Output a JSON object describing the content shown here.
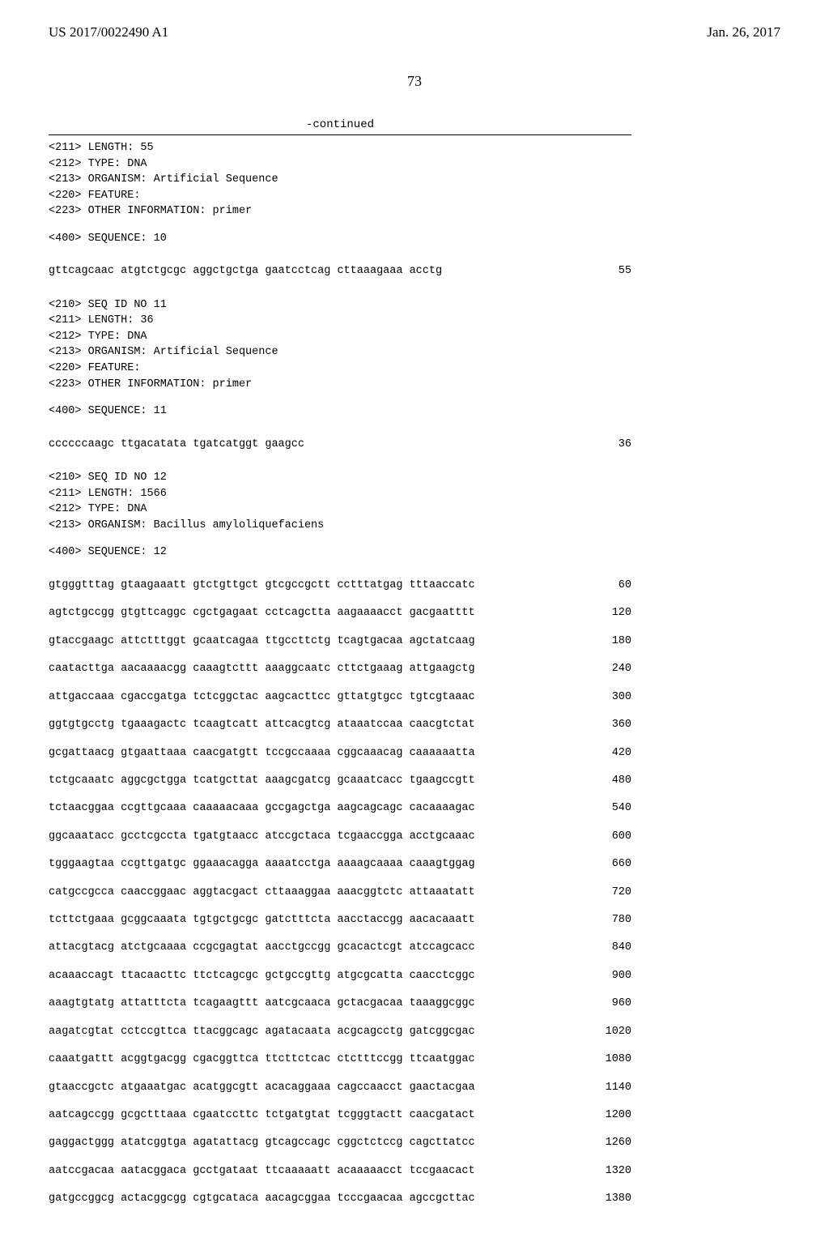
{
  "header": {
    "pub_no": "US 2017/0022490 A1",
    "date": "Jan. 26, 2017"
  },
  "page_number": "73",
  "continued": "-continued",
  "meta_block_1": [
    "<211> LENGTH: 55",
    "<212> TYPE: DNA",
    "<213> ORGANISM: Artificial Sequence",
    "<220> FEATURE:",
    "<223> OTHER INFORMATION: primer"
  ],
  "seq_label_10": "<400> SEQUENCE: 10",
  "row_10": {
    "seq": "gttcagcaac atgtctgcgc aggctgctga gaatcctcag cttaaagaaa acctg",
    "num": "55"
  },
  "meta_block_2": [
    "<210> SEQ ID NO 11",
    "<211> LENGTH: 36",
    "<212> TYPE: DNA",
    "<213> ORGANISM: Artificial Sequence",
    "<220> FEATURE:",
    "<223> OTHER INFORMATION: primer"
  ],
  "seq_label_11": "<400> SEQUENCE: 11",
  "row_11": {
    "seq": "ccccccaagc ttgacatata tgatcatggt gaagcc",
    "num": "36"
  },
  "meta_block_3": [
    "<210> SEQ ID NO 12",
    "<211> LENGTH: 1566",
    "<212> TYPE: DNA",
    "<213> ORGANISM: Bacillus amyloliquefaciens"
  ],
  "seq_label_12": "<400> SEQUENCE: 12",
  "rows_12": [
    {
      "seq": "gtgggtttag gtaagaaatt gtctgttgct gtcgccgctt cctttatgag tttaaccatc",
      "num": "60"
    },
    {
      "seq": "agtctgccgg gtgttcaggc cgctgagaat cctcagctta aagaaaacct gacgaatttt",
      "num": "120"
    },
    {
      "seq": "gtaccgaagc attctttggt gcaatcagaa ttgccttctg tcagtgacaa agctatcaag",
      "num": "180"
    },
    {
      "seq": "caatacttga aacaaaacgg caaagtcttt aaaggcaatc cttctgaaag attgaagctg",
      "num": "240"
    },
    {
      "seq": "attgaccaaa cgaccgatga tctcggctac aagcacttcc gttatgtgcc tgtcgtaaac",
      "num": "300"
    },
    {
      "seq": "ggtgtgcctg tgaaagactc tcaagtcatt attcacgtcg ataaatccaa caacgtctat",
      "num": "360"
    },
    {
      "seq": "gcgattaacg gtgaattaaa caacgatgtt tccgccaaaa cggcaaacag caaaaaatta",
      "num": "420"
    },
    {
      "seq": "tctgcaaatc aggcgctgga tcatgcttat aaagcgatcg gcaaatcacc tgaagccgtt",
      "num": "480"
    },
    {
      "seq": "tctaacggaa ccgttgcaaa caaaaacaaa gccgagctga aagcagcagc cacaaaagac",
      "num": "540"
    },
    {
      "seq": "ggcaaatacc gcctcgccta tgatgtaacc atccgctaca tcgaaccgga acctgcaaac",
      "num": "600"
    },
    {
      "seq": "tgggaagtaa ccgttgatgc ggaaacagga aaaatcctga aaaagcaaaa caaagtggag",
      "num": "660"
    },
    {
      "seq": "catgccgcca caaccggaac aggtacgact cttaaaggaa aaacggtctc attaaatatt",
      "num": "720"
    },
    {
      "seq": "tcttctgaaa gcggcaaata tgtgctgcgc gatctttcta aacctaccgg aacacaaatt",
      "num": "780"
    },
    {
      "seq": "attacgtacg atctgcaaaa ccgcgagtat aacctgccgg gcacactcgt atccagcacc",
      "num": "840"
    },
    {
      "seq": "acaaaccagt ttacaacttc ttctcagcgc gctgccgttg atgcgcatta caacctcggc",
      "num": "900"
    },
    {
      "seq": "aaagtgtatg attatttcta tcagaagttt aatcgcaaca gctacgacaa taaaggcggc",
      "num": "960"
    },
    {
      "seq": "aagatcgtat cctccgttca ttacggcagc agatacaata acgcagcctg gatcggcgac",
      "num": "1020"
    },
    {
      "seq": "caaatgattt acggtgacgg cgacggttca ttcttctcac ctctttccgg ttcaatggac",
      "num": "1080"
    },
    {
      "seq": "gtaaccgctc atgaaatgac acatggcgtt acacaggaaa cagccaacct gaactacgaa",
      "num": "1140"
    },
    {
      "seq": "aatcagccgg gcgctttaaa cgaatccttc tctgatgtat tcgggtactt caacgatact",
      "num": "1200"
    },
    {
      "seq": "gaggactggg atatcggtga agatattacg gtcagccagc cggctctccg cagcttatcc",
      "num": "1260"
    },
    {
      "seq": "aatccgacaa aatacggaca gcctgataat ttcaaaaatt acaaaaacct tccgaacact",
      "num": "1320"
    },
    {
      "seq": "gatgccggcg actacggcgg cgtgcataca aacagcggaa tcccgaacaa agccgcttac",
      "num": "1380"
    }
  ]
}
